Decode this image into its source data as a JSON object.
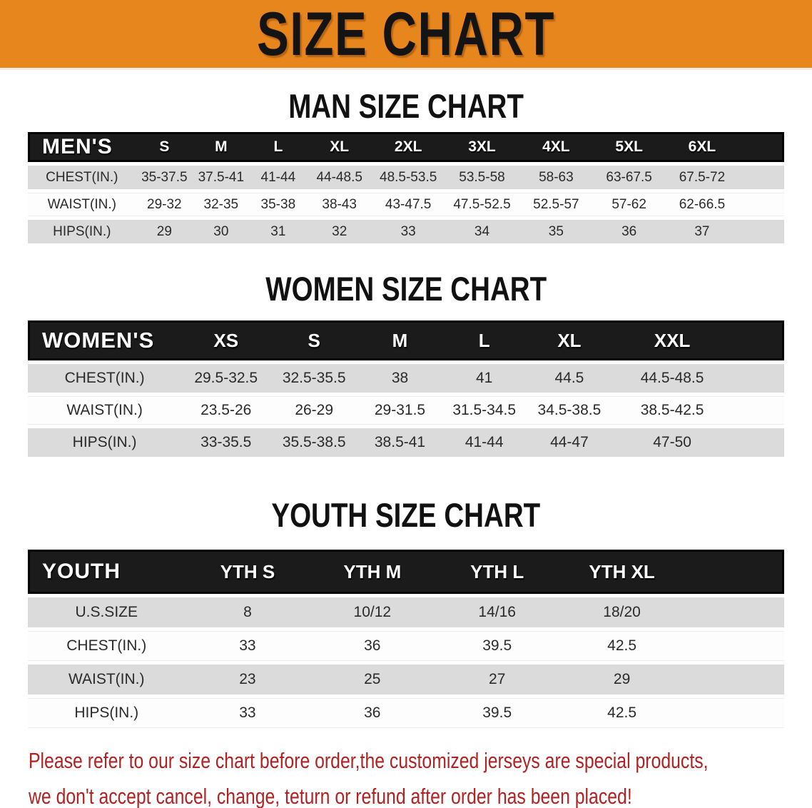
{
  "banner": {
    "title": "SIZE CHART"
  },
  "sections": [
    {
      "heading": "MAN SIZE CHART",
      "table": {
        "header_label": "MEN'S",
        "sizes": [
          "S",
          "M",
          "L",
          "XL",
          "2XL",
          "3XL",
          "4XL",
          "5XL",
          "6XL"
        ],
        "rows": [
          {
            "label": "CHEST(IN.)",
            "values": [
              "35-37.5",
              "37.5-41",
              "41-44",
              "44-48.5",
              "48.5-53.5",
              "53.5-58",
              "58-63",
              "63-67.5",
              "67.5-72"
            ]
          },
          {
            "label": "WAIST(IN.)",
            "values": [
              "29-32",
              "32-35",
              "35-38",
              "38-43",
              "43-47.5",
              "47.5-52.5",
              "52.5-57",
              "57-62",
              "62-66.5"
            ]
          },
          {
            "label": "HIPS(IN.)",
            "values": [
              "29",
              "30",
              "31",
              "32",
              "33",
              "34",
              "35",
              "36",
              "37"
            ]
          }
        ]
      }
    },
    {
      "heading": "WOMEN SIZE CHART",
      "table": {
        "header_label": "WOMEN'S",
        "sizes": [
          "XS",
          "S",
          "M",
          "L",
          "XL",
          "XXL"
        ],
        "rows": [
          {
            "label": "CHEST(IN.)",
            "values": [
              "29.5-32.5",
              "32.5-35.5",
              "38",
              "41",
              "44.5",
              "44.5-48.5"
            ]
          },
          {
            "label": "WAIST(IN.)",
            "values": [
              "23.5-26",
              "26-29",
              "29-31.5",
              "31.5-34.5",
              "34.5-38.5",
              "38.5-42.5"
            ]
          },
          {
            "label": "HIPS(IN.)",
            "values": [
              "33-35.5",
              "35.5-38.5",
              "38.5-41",
              "41-44",
              "44-47",
              "47-50"
            ]
          }
        ]
      }
    },
    {
      "heading": "YOUTH SIZE CHART",
      "table": {
        "header_label": "YOUTH",
        "sizes": [
          "YTH S",
          "YTH M",
          "YTH L",
          "YTH XL"
        ],
        "rows": [
          {
            "label": "U.S.SIZE",
            "values": [
              "8",
              "10/12",
              "14/16",
              "18/20"
            ]
          },
          {
            "label": "CHEST(IN.)",
            "values": [
              "33",
              "36",
              "39.5",
              "42.5"
            ]
          },
          {
            "label": "WAIST(IN.)",
            "values": [
              "23",
              "25",
              "27",
              "29"
            ]
          },
          {
            "label": "HIPS(IN.)",
            "values": [
              "33",
              "36",
              "39.5",
              "42.5"
            ]
          }
        ]
      }
    }
  ],
  "disclaimer": {
    "line1": "Please refer to our size chart before order,the customized jerseys are special products,",
    "line2": "we don't accept cancel, change, teturn or refund after order has been placed!"
  },
  "colors": {
    "banner_orange": "#E8861E",
    "header_black": "#1b1b1b",
    "row_gray": "#DBDBDB",
    "row_white": "#FDFDFD",
    "disclaimer_red": "#B22222",
    "heading_black": "#111111"
  }
}
